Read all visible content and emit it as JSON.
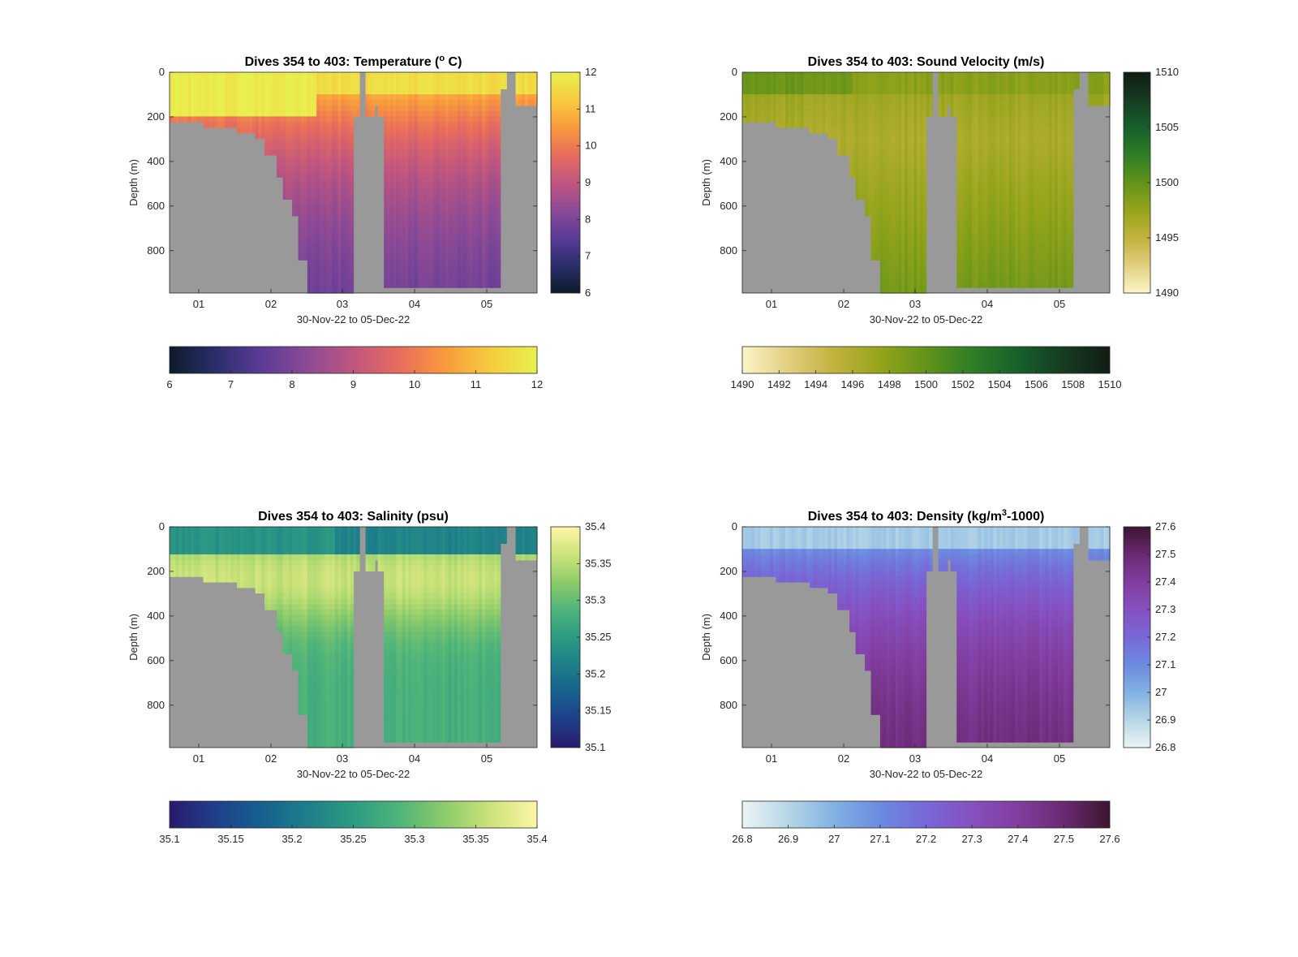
{
  "chart_data": [
    {
      "type": "heatmap",
      "title": "Dives 354 to 403: Temperature (",
      "title_sup": "o",
      "title_end": " C)",
      "xlabel": "30-Nov-22 to 05-Dec-22",
      "ylabel": "Depth (m)",
      "x_ticks": [
        "01",
        "02",
        "03",
        "04",
        "05"
      ],
      "x_range": [
        "2022-11-30T14:00",
        "2022-12-05T19:00"
      ],
      "y_ticks": [
        0,
        200,
        400,
        600,
        800
      ],
      "ylim": [
        0,
        990
      ],
      "y_reversed": true,
      "colorbar_ticks_right": [
        6,
        7,
        8,
        9,
        10,
        11,
        12
      ],
      "colorbar_ticks_bottom": [
        6,
        7,
        8,
        9,
        10,
        11,
        12
      ],
      "clim": [
        6,
        12
      ],
      "colormap": [
        "#0c1b2a",
        "#2a2e6c",
        "#5b3b97",
        "#8c4a95",
        "#c0567f",
        "#e76c5d",
        "#f99a3c",
        "#f6cc3e",
        "#e8f050"
      ],
      "missing_color": "#999999",
      "profile": {
        "surface": 11.6,
        "deep": 7.4,
        "mld": 90,
        "scale": 450
      }
    },
    {
      "type": "heatmap",
      "title": "Dives 354 to 403: Sound Velocity (m/s)",
      "xlabel": "30-Nov-22 to 05-Dec-22",
      "ylabel": "Depth (m)",
      "x_ticks": [
        "01",
        "02",
        "03",
        "04",
        "05"
      ],
      "x_range": [
        "2022-11-30T14:00",
        "2022-12-05T19:00"
      ],
      "y_ticks": [
        0,
        200,
        400,
        600,
        800
      ],
      "ylim": [
        0,
        990
      ],
      "y_reversed": true,
      "colorbar_ticks_right": [
        1490,
        1495,
        1500,
        1505,
        1510
      ],
      "colorbar_ticks_bottom": [
        1490,
        1492,
        1494,
        1496,
        1498,
        1500,
        1502,
        1504,
        1506,
        1508,
        1510
      ],
      "clim": [
        1490,
        1510
      ],
      "colormap": [
        "#fbf5c8",
        "#e2cf7f",
        "#c2b23e",
        "#95a41b",
        "#62931a",
        "#2f7e26",
        "#16602b",
        "#163b22",
        "#111c14"
      ],
      "missing_color": "#999999",
      "profile": {
        "surface": 1498.0,
        "deep": 1499.2,
        "mld": 90,
        "min": 1496.2,
        "minDepth": 300
      }
    },
    {
      "type": "heatmap",
      "title": "Dives 354 to 403: Salinity (psu)",
      "xlabel": "30-Nov-22 to 05-Dec-22",
      "ylabel": "Depth (m)",
      "x_ticks": [
        "01",
        "02",
        "03",
        "04",
        "05"
      ],
      "x_range": [
        "2022-11-30T14:00",
        "2022-12-05T19:00"
      ],
      "y_ticks": [
        0,
        200,
        400,
        600,
        800
      ],
      "ylim": [
        0,
        990
      ],
      "y_reversed": true,
      "colorbar_ticks_right": [
        35.1,
        35.15,
        35.2,
        35.25,
        35.3,
        35.35,
        35.4
      ],
      "colorbar_ticks_bottom": [
        35.1,
        35.15,
        35.2,
        35.25,
        35.3,
        35.35,
        35.4
      ],
      "clim": [
        35.1,
        35.4
      ],
      "colormap": [
        "#281a6e",
        "#1f3f8a",
        "#16608f",
        "#1e7e8a",
        "#2c9b82",
        "#4fb47a",
        "#8dcc6a",
        "#cde37a",
        "#fdf6a6"
      ],
      "missing_color": "#999999",
      "profile": {
        "surface": 35.24,
        "peak": 35.36,
        "peakDepth": 230,
        "deep": 35.28
      }
    },
    {
      "type": "heatmap",
      "title": "Dives 354 to 403: Density (kg/m",
      "title_sup": "3",
      "title_end": "-1000)",
      "xlabel": "30-Nov-22 to 05-Dec-22",
      "ylabel": "Depth (m)",
      "x_ticks": [
        "01",
        "02",
        "03",
        "04",
        "05"
      ],
      "x_range": [
        "2022-11-30T14:00",
        "2022-12-05T19:00"
      ],
      "y_ticks": [
        0,
        200,
        400,
        600,
        800
      ],
      "ylim": [
        0,
        990
      ],
      "y_reversed": true,
      "colorbar_ticks_right": [
        26.8,
        26.9,
        27,
        27.1,
        27.2,
        27.3,
        27.4,
        27.5,
        27.6
      ],
      "colorbar_ticks_bottom": [
        26.8,
        26.9,
        27,
        27.1,
        27.2,
        27.3,
        27.4,
        27.5,
        27.6
      ],
      "clim": [
        26.8,
        27.6
      ],
      "colormap": [
        "#ecf4f5",
        "#b6d6e6",
        "#82b2e2",
        "#6b8ae0",
        "#7868d7",
        "#8650c0",
        "#823d9e",
        "#692a72",
        "#3d1530"
      ],
      "missing_color": "#999999",
      "profile": {
        "surface": 26.93,
        "deep": 27.52,
        "mld": 90,
        "scale": 420
      }
    }
  ]
}
